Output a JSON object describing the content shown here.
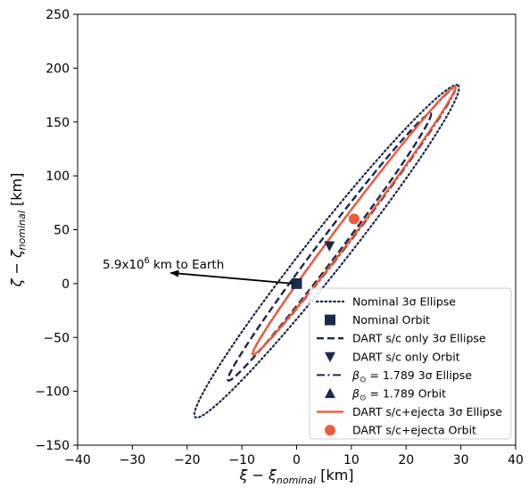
{
  "chart_data": {
    "type": "scatter",
    "xlabel_main": "ξ − ξ",
    "xlabel_sub": "nominal",
    "xlabel_unit": " [km]",
    "ylabel_main": "ζ − ζ",
    "ylabel_sub": "nominal",
    "ylabel_unit": " [km]",
    "xlim": [
      -40,
      40
    ],
    "ylim": [
      -150,
      250
    ],
    "xticks": [
      -40,
      -30,
      -20,
      -10,
      0,
      10,
      20,
      30,
      40
    ],
    "yticks": [
      -150,
      -100,
      -50,
      0,
      50,
      100,
      150,
      200,
      250
    ],
    "grid": false,
    "legend_position": "lower-right",
    "colors": {
      "navy": "#1b2a4a",
      "orange": "#ef5b3b"
    },
    "annotation": {
      "text_main": "5.9x10",
      "text_sup": "6",
      "text_tail": " km to Earth",
      "arrow_from": [
        0,
        0
      ],
      "arrow_to": [
        -23,
        10
      ]
    },
    "series": [
      {
        "name": "Nominal 3σ Ellipse",
        "kind": "ellipse",
        "style": "dotted",
        "color": "#1b2a4a",
        "tips": [
          [
            -18.5,
            -124
          ],
          [
            29.5,
            184
          ]
        ],
        "halfwidth": 3.6
      },
      {
        "name": "Nominal Orbit",
        "kind": "point",
        "marker": "square",
        "color": "#1b2a4a",
        "x": 0,
        "y": 0
      },
      {
        "name": "DART s/c only 3σ Ellipse",
        "kind": "ellipse",
        "style": "dashed",
        "color": "#1b2a4a",
        "tips": [
          [
            -12.5,
            -90
          ],
          [
            24.5,
            158
          ]
        ],
        "halfwidth": 1.9
      },
      {
        "name": "DART s/c only Orbit",
        "kind": "point",
        "marker": "triangle-down",
        "color": "#1b2a4a",
        "x": 6,
        "y": 35
      },
      {
        "name": "β⊙ = 1.789 3σ Ellipse",
        "name_label": "= 1.789 3σ Ellipse",
        "kind": "ellipse",
        "style": "dashdot",
        "color": "#1b2a4a",
        "tips": [
          [
            -8,
            -66
          ],
          [
            29,
            182
          ]
        ],
        "halfwidth": 1.7
      },
      {
        "name": "β⊙ = 1.789 Orbit",
        "name_label": "= 1.789 Orbit",
        "kind": "point",
        "marker": "triangle-up",
        "color": "#1b2a4a",
        "x": 10.5,
        "y": 60
      },
      {
        "name": "DART s/c+ejecta 3σ Ellipse",
        "kind": "ellipse",
        "style": "solid",
        "color": "#ef5b3b",
        "tips": [
          [
            -8,
            -66
          ],
          [
            29,
            183
          ]
        ],
        "halfwidth": 1.6
      },
      {
        "name": "DART s/c+ejecta Orbit",
        "kind": "point",
        "marker": "circle",
        "color": "#ef5b3b",
        "x": 10.5,
        "y": 60
      }
    ]
  }
}
